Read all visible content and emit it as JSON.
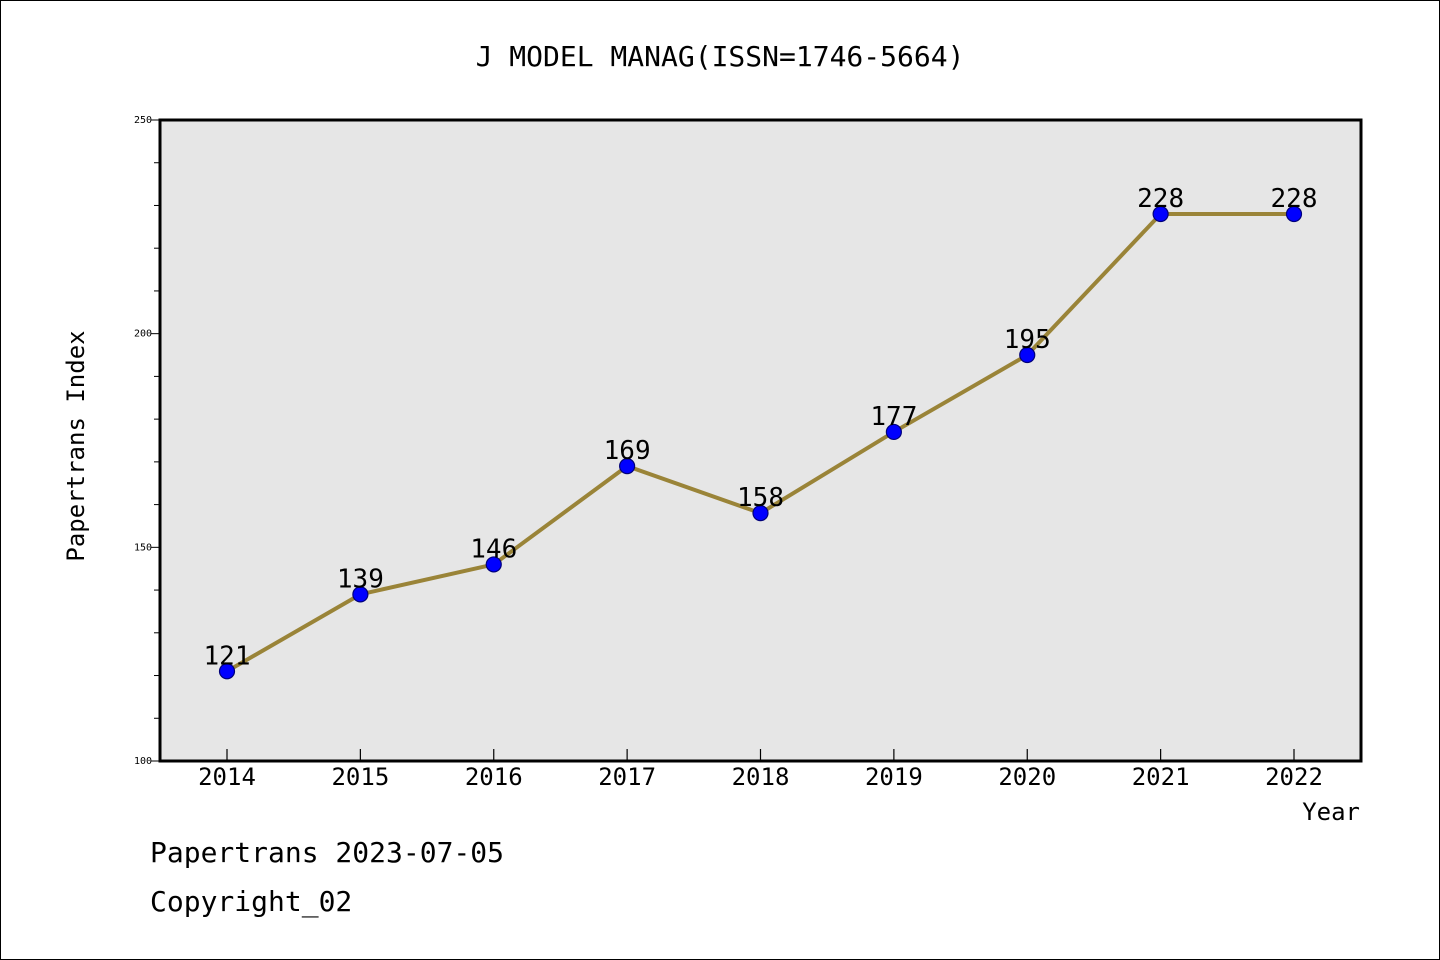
{
  "chart_data": {
    "type": "line",
    "title": "J MODEL MANAG(ISSN=1746-5664)",
    "xlabel": "Year",
    "ylabel": "Papertrans Index",
    "categories": [
      "2014",
      "2015",
      "2016",
      "2017",
      "2018",
      "2019",
      "2020",
      "2021",
      "2022"
    ],
    "series": [
      {
        "values": [
          121,
          139,
          146,
          169,
          158,
          177,
          195,
          228,
          228
        ]
      }
    ],
    "data_labels": [
      "121",
      "139",
      "146",
      "169",
      "158",
      "177",
      "195",
      "228",
      "228"
    ],
    "ylim": [
      100,
      250
    ],
    "yticks": [
      "100",
      "150",
      "200",
      "250"
    ],
    "grid": false,
    "legend": "none",
    "colors": {
      "plot_background": "#e6e6e6",
      "line": "#9a8438",
      "marker": "#0000ff",
      "marker_edge": "#00007a",
      "text": "#000000"
    }
  },
  "footer": {
    "date_line": "Papertrans 2023-07-05",
    "copyright": "Copyright_02"
  }
}
